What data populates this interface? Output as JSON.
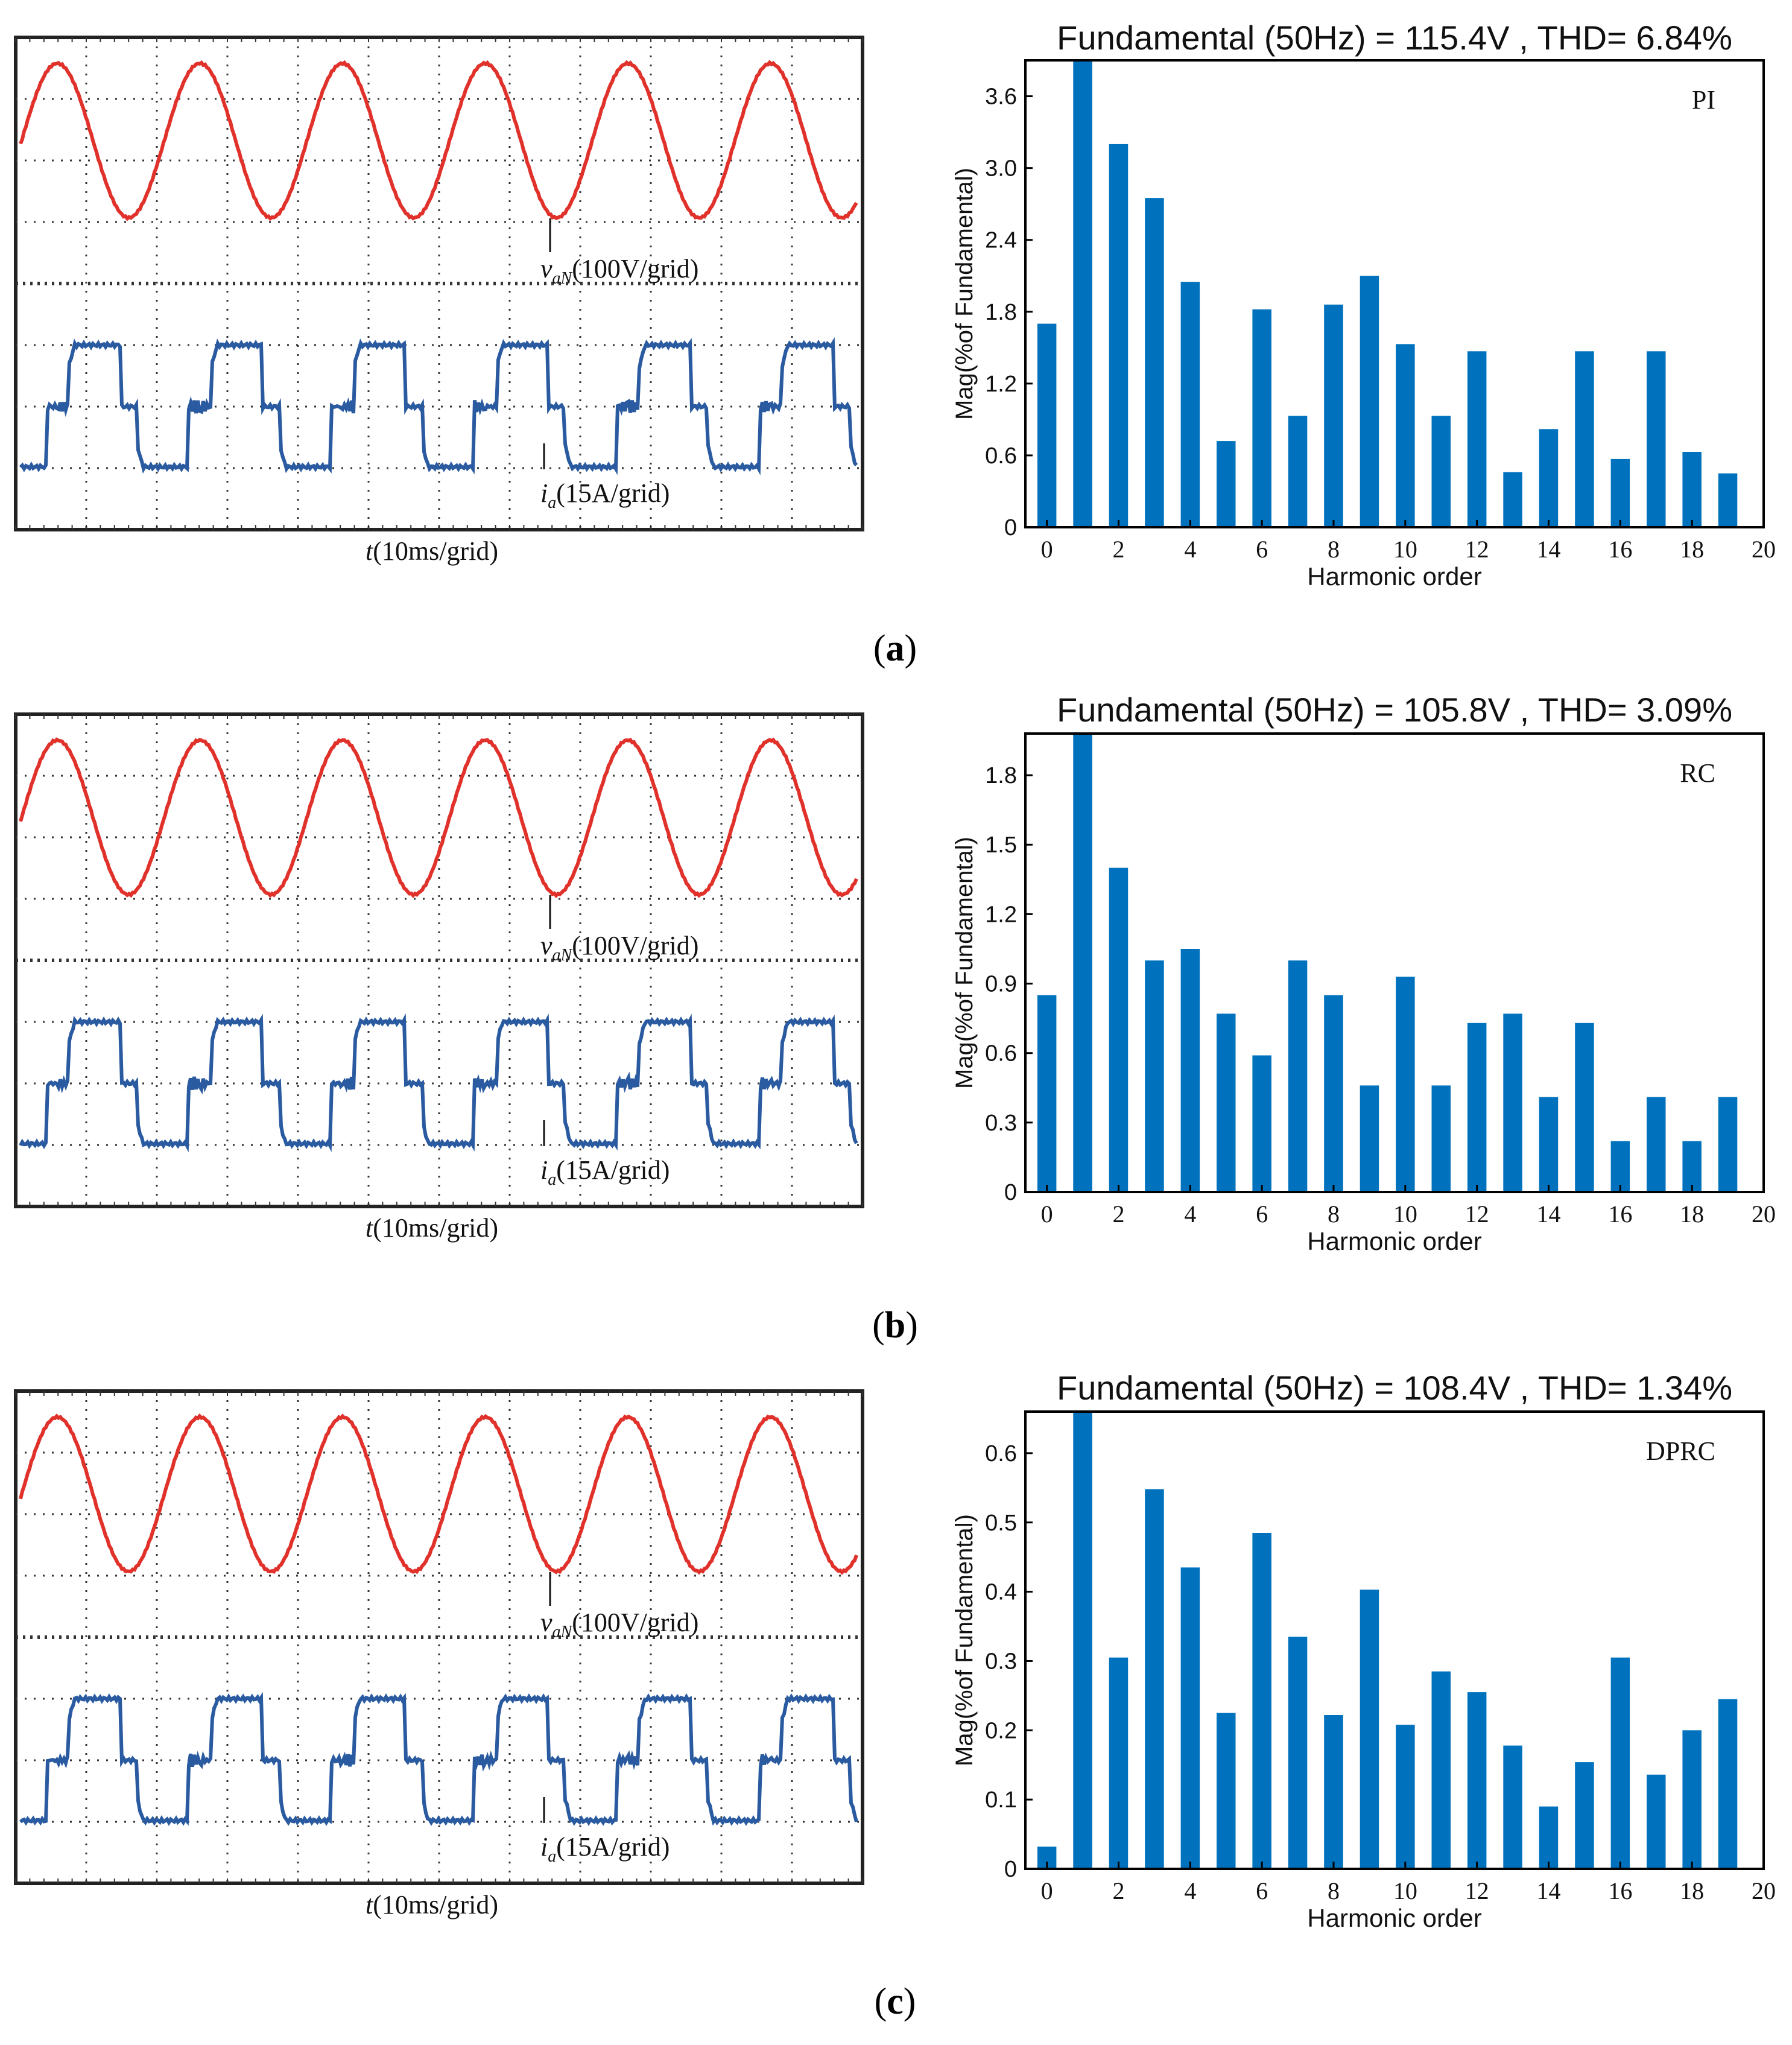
{
  "panels": [
    {
      "id": "a",
      "caption": "a",
      "scope": {
        "voltage_label_sym": "v",
        "voltage_label_sub": "aN",
        "voltage_label_scale": "(100V/grid)",
        "current_label_sym": "i",
        "current_label_sub": "a",
        "current_label_scale": "(15A/grid)",
        "time_label_sym": "t",
        "time_label_scale": "(10ms/grid)",
        "voltage_color": "#e0312b",
        "current_color": "#2a5aa0"
      }
    },
    {
      "id": "b",
      "caption": "b",
      "scope": {
        "voltage_label_sym": "v",
        "voltage_label_sub": "aN",
        "voltage_label_scale": "(100V/grid)",
        "current_label_sym": "i",
        "current_label_sub": "a",
        "current_label_scale": "(15A/grid)",
        "time_label_sym": "t",
        "time_label_scale": "(10ms/grid)",
        "voltage_color": "#e0312b",
        "current_color": "#2a5aa0"
      }
    },
    {
      "id": "c",
      "caption": "c",
      "scope": {
        "voltage_label_sym": "v",
        "voltage_label_sub": "aN",
        "voltage_label_scale": "(100V/grid)",
        "current_label_sym": "i",
        "current_label_sub": "a",
        "current_label_scale": "(15A/grid)",
        "time_label_sym": "t",
        "time_label_scale": "(10ms/grid)",
        "voltage_color": "#e0312b",
        "current_color": "#2a5aa0"
      }
    }
  ],
  "chart_data": [
    {
      "type": "bar",
      "title": "Fundamental (50Hz) = 115.4V , THD= 6.84%",
      "legend": "PI",
      "xlabel": "Harmonic order",
      "ylabel": "Mag(%of Fundamental)",
      "bar_color": "#0072bd",
      "categories": [
        0,
        1,
        2,
        3,
        4,
        5,
        6,
        7,
        8,
        9,
        10,
        11,
        12,
        13,
        14,
        15,
        16,
        17,
        18,
        19
      ],
      "values": [
        1.7,
        3.9,
        3.2,
        2.75,
        2.05,
        0.72,
        1.82,
        0.93,
        1.86,
        2.1,
        1.53,
        0.93,
        1.47,
        0.46,
        0.82,
        1.47,
        0.57,
        1.47,
        0.63,
        0.45
      ],
      "ylim": [
        0,
        3.9
      ],
      "yticks": [
        0,
        0.6,
        1.2,
        1.8,
        2.4,
        3.0,
        3.6
      ],
      "ytick_labels": [
        "0",
        "0.6",
        "1.2",
        "1.8",
        "2.4",
        "3.0",
        "3.6"
      ],
      "xlim": [
        -0.6,
        20
      ],
      "xticks": [
        0,
        2,
        4,
        6,
        8,
        10,
        12,
        14,
        16,
        18,
        20
      ],
      "xtick_labels": [
        "0",
        "2",
        "4",
        "6",
        "8",
        "10",
        "12",
        "14",
        "16",
        "18",
        "20"
      ]
    },
    {
      "type": "bar",
      "title": "Fundamental (50Hz) = 105.8V , THD= 3.09%",
      "legend": "RC",
      "xlabel": "Harmonic order",
      "ylabel": "Mag(%of Fundamental)",
      "bar_color": "#0072bd",
      "categories": [
        0,
        1,
        2,
        3,
        4,
        5,
        6,
        7,
        8,
        9,
        10,
        11,
        12,
        13,
        14,
        15,
        16,
        17,
        18,
        19
      ],
      "values": [
        0.85,
        1.98,
        1.4,
        1.0,
        1.05,
        0.77,
        0.59,
        1.0,
        0.85,
        0.46,
        0.93,
        0.46,
        0.73,
        0.77,
        0.41,
        0.73,
        0.22,
        0.41,
        0.22,
        0.41
      ],
      "ylim": [
        0,
        1.98
      ],
      "yticks": [
        0,
        0.3,
        0.6,
        0.9,
        1.2,
        1.5,
        1.8
      ],
      "ytick_labels": [
        "0",
        "0.3",
        "0.6",
        "0.9",
        "1.2",
        "1.5",
        "1.8"
      ],
      "xlim": [
        -0.6,
        20
      ],
      "xticks": [
        0,
        2,
        4,
        6,
        8,
        10,
        12,
        14,
        16,
        18,
        20
      ],
      "xtick_labels": [
        "0",
        "2",
        "4",
        "6",
        "8",
        "10",
        "12",
        "14",
        "16",
        "18",
        "20"
      ]
    },
    {
      "type": "bar",
      "title": "Fundamental (50Hz) = 108.4V , THD= 1.34%",
      "legend": "DPRC",
      "xlabel": "Harmonic order",
      "ylabel": "Mag(%of Fundamental)",
      "bar_color": "#0072bd",
      "categories": [
        0,
        1,
        2,
        3,
        4,
        5,
        6,
        7,
        8,
        9,
        10,
        11,
        12,
        13,
        14,
        15,
        16,
        17,
        18,
        19
      ],
      "values": [
        0.032,
        0.66,
        0.305,
        0.548,
        0.435,
        0.225,
        0.485,
        0.335,
        0.222,
        0.403,
        0.208,
        0.285,
        0.255,
        0.178,
        0.09,
        0.154,
        0.305,
        0.136,
        0.2,
        0.245
      ],
      "ylim": [
        0,
        0.66
      ],
      "yticks": [
        0,
        0.1,
        0.2,
        0.3,
        0.4,
        0.5,
        0.6
      ],
      "ytick_labels": [
        "0",
        "0.1",
        "0.2",
        "0.3",
        "0.4",
        "0.5",
        "0.6"
      ],
      "xlim": [
        -0.6,
        20
      ],
      "xticks": [
        0,
        2,
        4,
        6,
        8,
        10,
        12,
        14,
        16,
        18,
        20
      ],
      "xtick_labels": [
        "0",
        "2",
        "4",
        "6",
        "8",
        "10",
        "12",
        "14",
        "16",
        "18",
        "20"
      ]
    }
  ]
}
